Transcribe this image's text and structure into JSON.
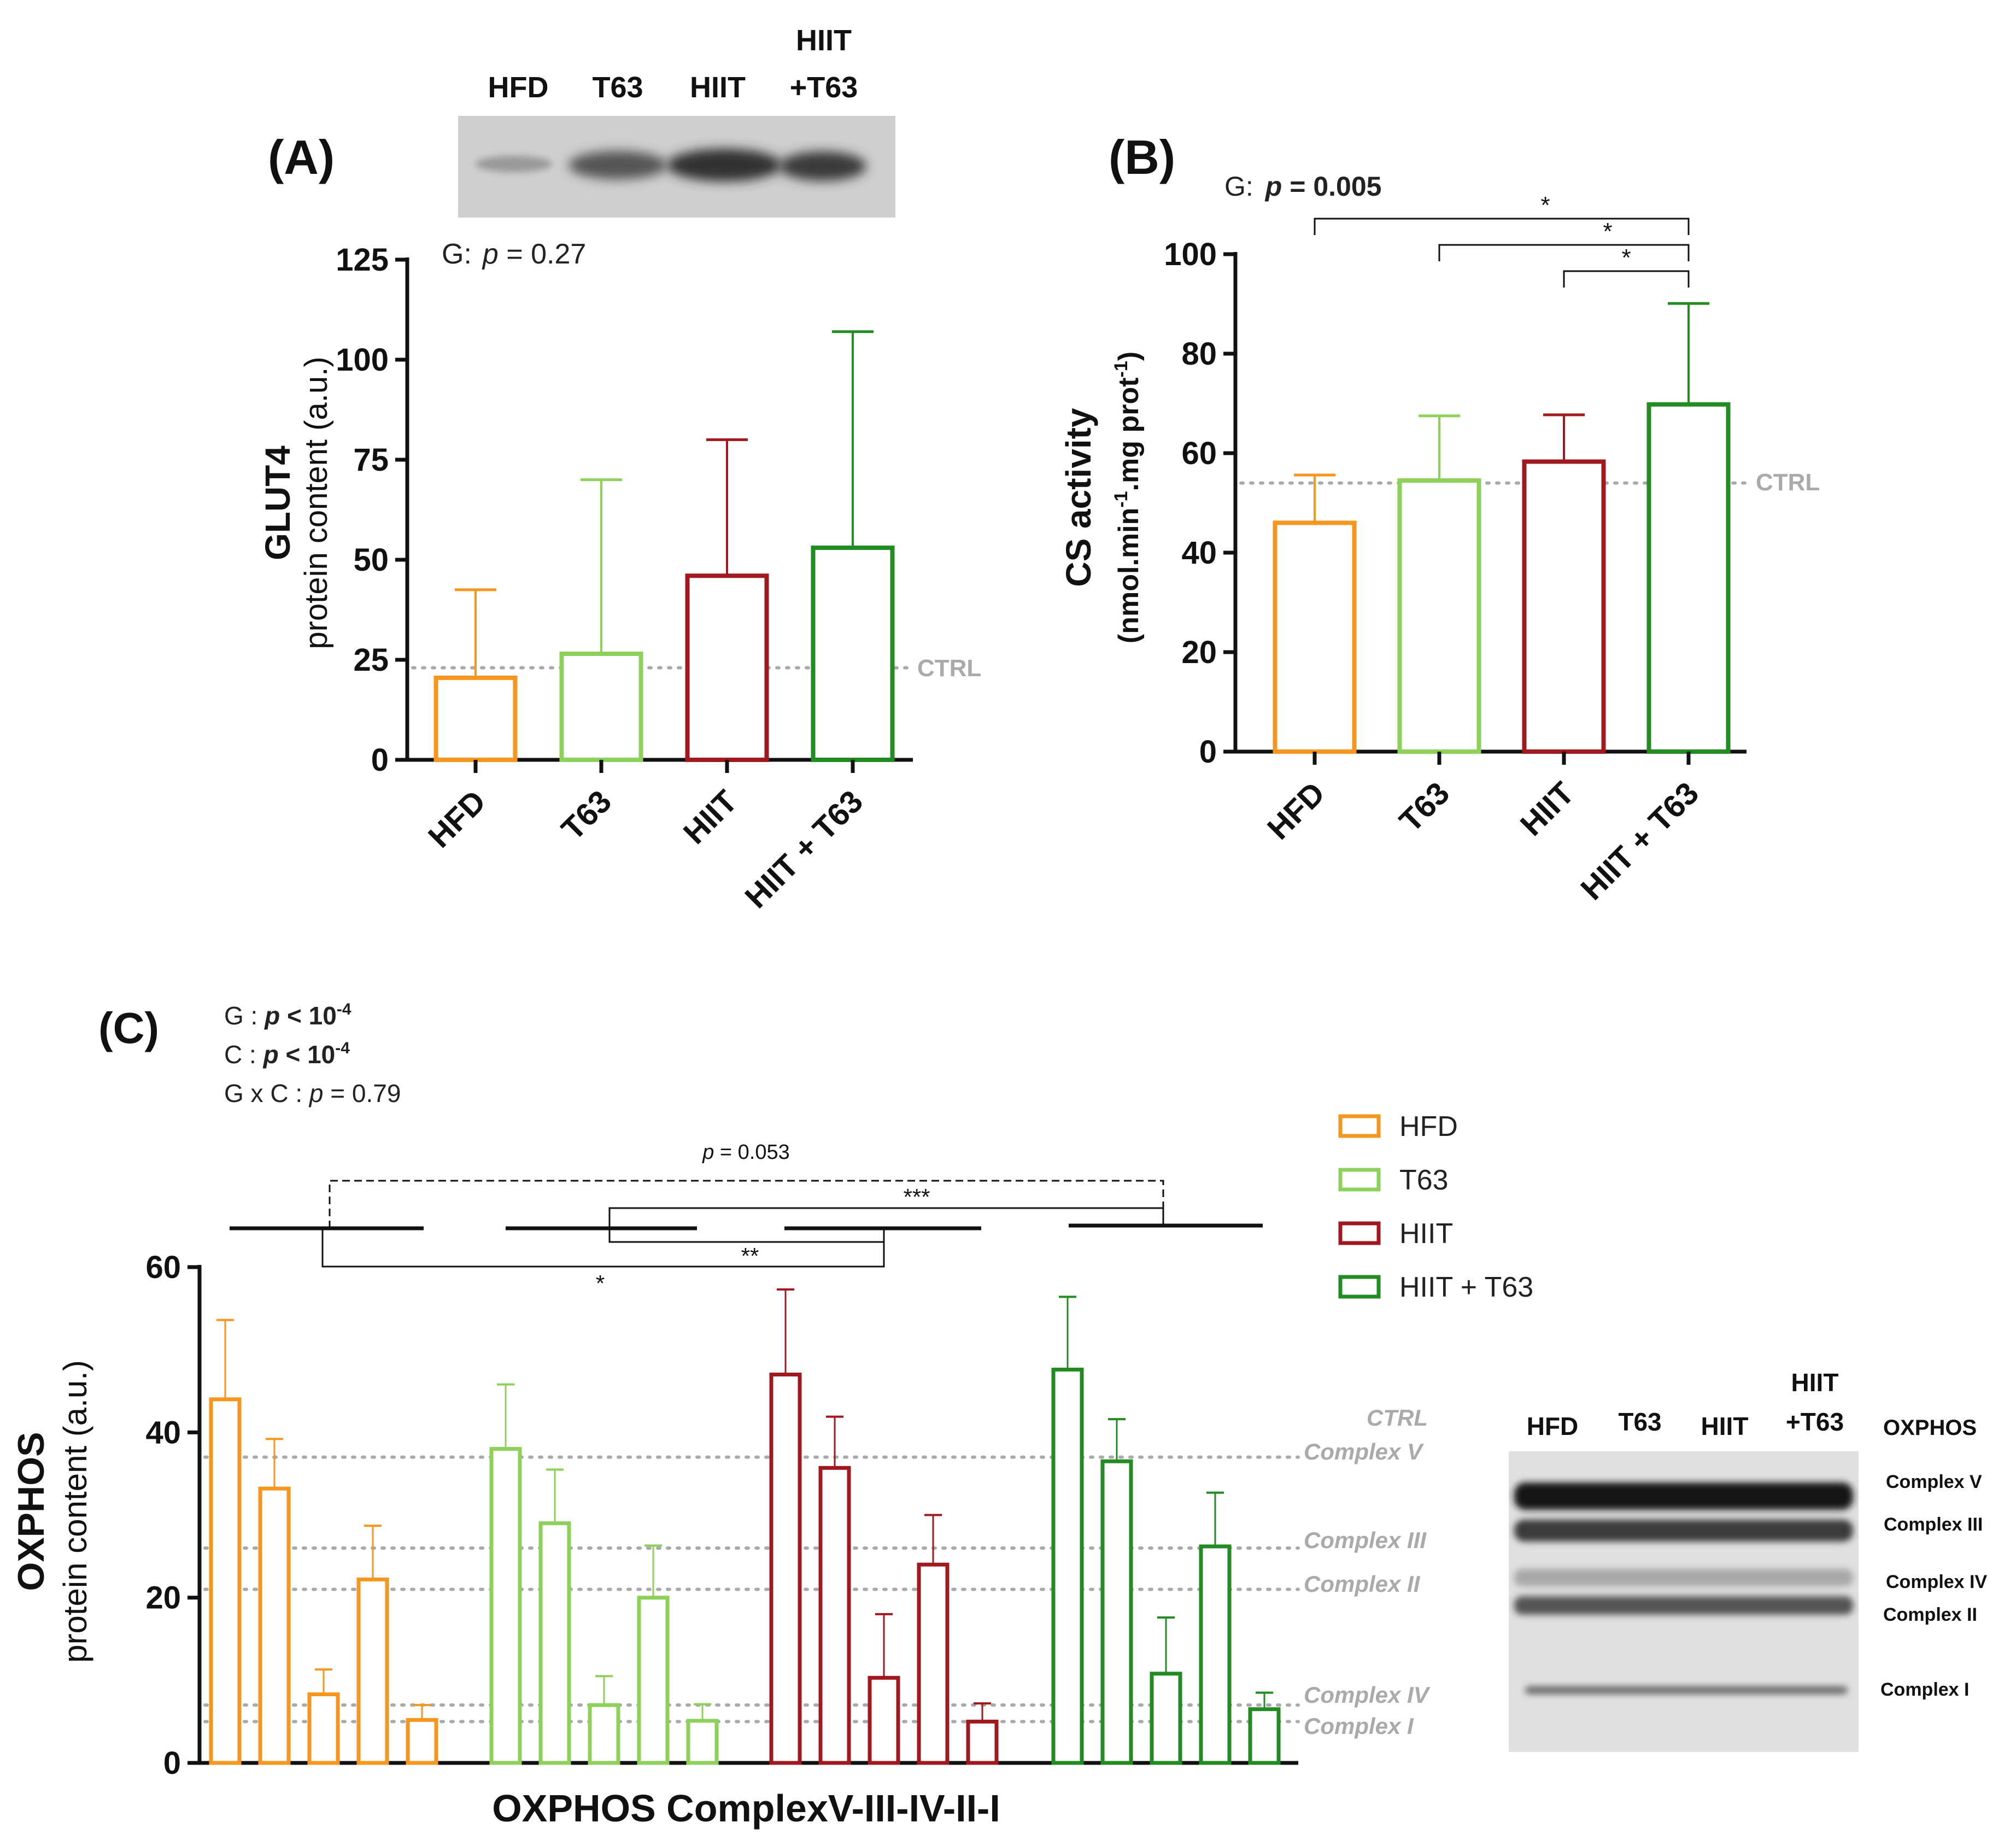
{
  "colors": {
    "HFD": "#F7961F",
    "T63": "#8DD05A",
    "HIIT": "#A0191E",
    "HIIT + T63": "#228B22",
    "ctrl_line": "#AAAAAA",
    "axis": "#111111"
  },
  "chart_data": [
    {
      "id": "A",
      "panel_label": "(A)",
      "type": "bar",
      "stat_prefix": "G:",
      "stat_p": "p",
      "stat_rest": " = 0.27",
      "categories": [
        "HFD",
        "T63",
        "HIIT",
        "HIIT + T63"
      ],
      "tick_labels": [
        "HFD",
        "T63",
        "HIIT",
        "HIIT + T63"
      ],
      "values": [
        20.5,
        26.5,
        46,
        53
      ],
      "errors": [
        22,
        43.5,
        34,
        54
      ],
      "ylim": [
        0,
        125
      ],
      "yticks": [
        0,
        25,
        50,
        75,
        100,
        125
      ],
      "ylabel_line1": "GLUT4",
      "ylabel_line2": "protein content (a.u.)",
      "ctrl_value": 23,
      "ctrl_label": "CTRL",
      "blot_lanes": [
        "HFD",
        "T63",
        "HIIT"
      ],
      "blot_lane4_line1": "HIIT",
      "blot_lane4_line2": "+T63"
    },
    {
      "id": "B",
      "panel_label": "(B)",
      "type": "bar",
      "stat_prefix": "G:",
      "stat_p": "p",
      "stat_rest": " = 0.005",
      "categories": [
        "HFD",
        "T63",
        "HIIT",
        "HIIT + T63"
      ],
      "tick_labels": [
        "HFD",
        "T63",
        "HIIT",
        "HIIT + T63"
      ],
      "values": [
        46,
        54.5,
        58.3,
        69.8
      ],
      "errors": [
        9.6,
        13,
        9.4,
        20.3
      ],
      "ylim": [
        0,
        100
      ],
      "yticks": [
        0,
        20,
        40,
        60,
        80,
        100
      ],
      "ylabel_line1": "CS activity",
      "ylabel_line2a": "(nmol.min",
      "ylabel_sup1": "-1",
      "ylabel_line2b": ".mg prot",
      "ylabel_sup2": "-1",
      "ylabel_line2c": ")",
      "ctrl_value": 54,
      "ctrl_label": "CTRL",
      "brackets": [
        {
          "from": 0,
          "to": 3,
          "label": "*"
        },
        {
          "from": 1,
          "to": 3,
          "label": "*"
        },
        {
          "from": 2,
          "to": 3,
          "label": "*"
        }
      ]
    },
    {
      "id": "C",
      "panel_label": "(C)",
      "type": "bar",
      "stats": [
        {
          "prefix": "G : ",
          "p": "p",
          "rest": " < 10",
          "sup": "-4"
        },
        {
          "prefix": "C : ",
          "p": "p",
          "rest": " < 10",
          "sup": "-4"
        },
        {
          "prefix": "G x C : ",
          "p": "p",
          "rest": " = 0.79",
          "sup": ""
        }
      ],
      "categories": [
        "Complex V",
        "Complex III",
        "Complex IV",
        "Complex II",
        "Complex I"
      ],
      "series": [
        {
          "name": "HFD",
          "values": [
            44,
            33.2,
            8.3,
            22.2,
            5.2
          ],
          "errors": [
            9.6,
            6,
            3,
            6.5,
            1.8
          ]
        },
        {
          "name": "T63",
          "values": [
            38,
            29,
            7,
            20,
            5.1
          ],
          "errors": [
            7.8,
            6.5,
            3.5,
            6.3,
            2
          ]
        },
        {
          "name": "HIIT",
          "values": [
            47,
            35.7,
            10.3,
            24,
            5
          ],
          "errors": [
            10.3,
            6.2,
            7.7,
            6,
            2.2
          ]
        },
        {
          "name": "HIIT + T63",
          "values": [
            47.6,
            36.5,
            10.8,
            26.2,
            6.5
          ],
          "errors": [
            8.8,
            5.1,
            6.8,
            6.5,
            2
          ]
        }
      ],
      "ylim": [
        0,
        60
      ],
      "yticks": [
        0,
        20,
        40,
        60
      ],
      "ylabel_line1": "OXPHOS",
      "ylabel_line2": "protein content (a.u.)",
      "xlabel": "OXPHOS ComplexV-III-IV-II-I",
      "ctrl_label": "CTRL",
      "ctrl_lines": [
        {
          "label": "Complex V",
          "value": 37
        },
        {
          "label": "Complex III",
          "value": 26
        },
        {
          "label": "Complex II",
          "value": 21
        },
        {
          "label": "Complex IV",
          "value": 7
        },
        {
          "label": "Complex I",
          "value": 5
        }
      ],
      "legend": [
        "HFD",
        "T63",
        "HIIT",
        "HIIT + T63"
      ],
      "brackets": {
        "dashed_label_p": "p",
        "dashed_label_rest": " = 0.053",
        "three_star": "***",
        "two_star": "**",
        "one_star": "*"
      },
      "blot": {
        "lanes": [
          "HFD",
          "T63",
          "HIIT"
        ],
        "lane4_line1": "HIIT",
        "lane4_line2": "+T63",
        "title": "OXPHOS",
        "bands": [
          "Complex V",
          "Complex III",
          "Complex IV",
          "Complex II",
          "Complex I"
        ]
      }
    }
  ]
}
